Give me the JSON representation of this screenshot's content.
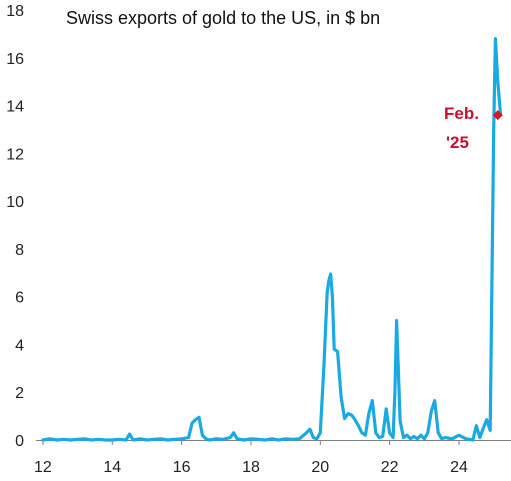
{
  "chart_data": {
    "type": "line",
    "title": "Swiss exports of gold to the US, in $ bn",
    "xlabel": "",
    "ylabel": "",
    "xlim": [
      11.8,
      25.5
    ],
    "ylim": [
      0,
      18
    ],
    "x_ticks": [
      12,
      14,
      16,
      18,
      20,
      22,
      24
    ],
    "y_ticks": [
      0,
      2,
      4,
      6,
      8,
      10,
      12,
      14,
      16,
      18
    ],
    "x_tick_labels": [
      "12",
      "14",
      "16",
      "18",
      "20",
      "22",
      "24"
    ],
    "y_tick_labels": [
      "0",
      "2",
      "4",
      "6",
      "8",
      "10",
      "12",
      "14",
      "16",
      "18"
    ],
    "grid": false,
    "line_color": "#1aa9e0",
    "marker_color": "#d7191c",
    "series": [
      {
        "x": [
          12.0,
          12.2,
          12.4,
          12.6,
          12.8,
          13.0,
          13.2,
          13.4,
          13.6,
          13.8,
          14.0,
          14.2,
          14.4,
          14.5,
          14.6,
          14.8,
          15.0,
          15.2,
          15.4,
          15.6,
          15.8,
          16.0,
          16.2,
          16.3,
          16.4,
          16.5,
          16.6,
          16.7,
          16.8,
          17.0,
          17.2,
          17.4,
          17.5,
          17.6,
          17.8,
          18.0,
          18.2,
          18.4,
          18.6,
          18.8,
          19.0,
          19.2,
          19.4,
          19.6,
          19.7,
          19.8,
          19.9,
          20.0,
          20.1,
          20.2,
          20.25,
          20.3,
          20.35,
          20.4,
          20.5,
          20.6,
          20.7,
          20.8,
          20.9,
          21.0,
          21.1,
          21.2,
          21.3,
          21.4,
          21.5,
          21.6,
          21.7,
          21.8,
          21.9,
          22.0,
          22.1,
          22.15,
          22.2,
          22.25,
          22.3,
          22.4,
          22.5,
          22.6,
          22.7,
          22.8,
          22.9,
          23.0,
          23.1,
          23.2,
          23.3,
          23.4,
          23.5,
          23.6,
          23.8,
          24.0,
          24.2,
          24.4,
          24.5,
          24.6,
          24.7,
          24.8,
          24.9,
          25.0,
          25.05,
          25.12,
          25.2
        ],
        "y": [
          0.0,
          0.05,
          0.0,
          0.03,
          0.0,
          0.03,
          0.05,
          0.0,
          0.03,
          0.0,
          0.0,
          0.03,
          0.0,
          0.25,
          0.0,
          0.05,
          0.0,
          0.03,
          0.05,
          0.0,
          0.03,
          0.05,
          0.1,
          0.7,
          0.85,
          0.95,
          0.2,
          0.05,
          0.0,
          0.05,
          0.03,
          0.1,
          0.3,
          0.05,
          0.0,
          0.05,
          0.03,
          0.0,
          0.05,
          0.0,
          0.05,
          0.03,
          0.05,
          0.3,
          0.45,
          0.1,
          0.05,
          0.3,
          3.0,
          6.2,
          6.7,
          6.95,
          6.0,
          3.8,
          3.7,
          1.8,
          0.9,
          1.1,
          1.05,
          0.85,
          0.6,
          0.3,
          0.2,
          1.1,
          1.65,
          0.3,
          0.1,
          0.15,
          1.3,
          0.3,
          0.1,
          2.0,
          5.0,
          3.0,
          0.8,
          0.1,
          0.2,
          0.05,
          0.15,
          0.05,
          0.2,
          0.05,
          0.3,
          1.2,
          1.65,
          0.3,
          0.05,
          0.1,
          0.05,
          0.2,
          0.05,
          0.0,
          0.6,
          0.1,
          0.5,
          0.85,
          0.4,
          13.0,
          16.8,
          15.0,
          13.6
        ]
      }
    ],
    "annotation": {
      "line1": "Feb.",
      "line2": "'25",
      "x": 25.12,
      "y": 13.6
    }
  }
}
